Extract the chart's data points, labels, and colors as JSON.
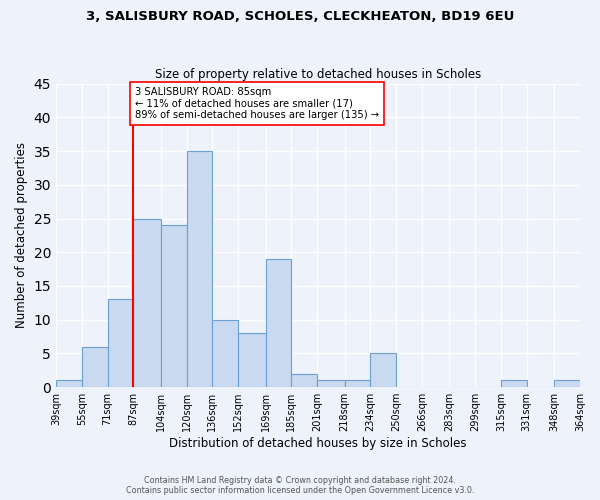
{
  "title_line1": "3, SALISBURY ROAD, SCHOLES, CLECKHEATON, BD19 6EU",
  "title_line2": "Size of property relative to detached houses in Scholes",
  "xlabel": "Distribution of detached houses by size in Scholes",
  "ylabel": "Number of detached properties",
  "bin_edges": [
    39,
    55,
    71,
    87,
    104,
    120,
    136,
    152,
    169,
    185,
    201,
    218,
    234,
    250,
    266,
    283,
    299,
    315,
    331,
    348,
    364
  ],
  "bin_labels": [
    "39sqm",
    "55sqm",
    "71sqm",
    "87sqm",
    "104sqm",
    "120sqm",
    "136sqm",
    "152sqm",
    "169sqm",
    "185sqm",
    "201sqm",
    "218sqm",
    "234sqm",
    "250sqm",
    "266sqm",
    "283sqm",
    "299sqm",
    "315sqm",
    "331sqm",
    "348sqm",
    "364sqm"
  ],
  "counts": [
    1,
    6,
    13,
    25,
    24,
    35,
    10,
    8,
    19,
    2,
    1,
    1,
    5,
    0,
    0,
    0,
    0,
    1,
    0,
    1
  ],
  "bar_color": "#c9d9f0",
  "bar_edge_color": "#6aa0d4",
  "vline_x": 87,
  "vline_color": "red",
  "annotation_text": "3 SALISBURY ROAD: 85sqm\n← 11% of detached houses are smaller (17)\n89% of semi-detached houses are larger (135) →",
  "annotation_box_color": "white",
  "annotation_box_edge": "red",
  "ylim": [
    0,
    45
  ],
  "yticks": [
    0,
    5,
    10,
    15,
    20,
    25,
    30,
    35,
    40,
    45
  ],
  "footer_line1": "Contains HM Land Registry data © Crown copyright and database right 2024.",
  "footer_line2": "Contains public sector information licensed under the Open Government Licence v3.0.",
  "background_color": "#eef2fb",
  "grid_color": "white"
}
